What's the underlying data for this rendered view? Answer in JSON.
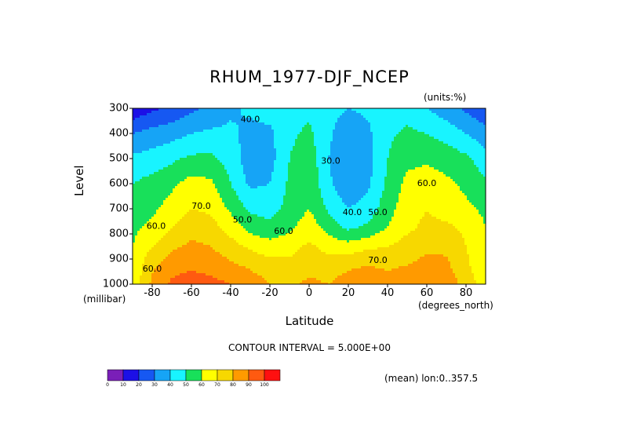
{
  "chart_data": {
    "type": "heatmap",
    "title": "RHUM_1977-DJF_NCEP",
    "units": "(units:%)",
    "ylabel": "Level",
    "yunits": "(millibar)",
    "xlabel": "Latitude",
    "xunits": "(degrees_north)",
    "contour_interval": "CONTOUR INTERVAL = 5.000E+00",
    "mean_note": "(mean) lon:0..357.5",
    "xlim": [
      -90,
      90
    ],
    "ylim": [
      1000,
      300
    ],
    "xticks": [
      -80,
      -60,
      -40,
      -20,
      0,
      20,
      40,
      60,
      80
    ],
    "xtick_labels": [
      "-80",
      "-60",
      "-40",
      "-20",
      "0",
      "20",
      "40",
      "60",
      "80"
    ],
    "yticks": [
      300,
      400,
      500,
      600,
      700,
      800,
      900,
      1000
    ],
    "ytick_labels": [
      "300",
      "400",
      "500",
      "600",
      "700",
      "800",
      "900",
      "1000"
    ],
    "latitude": [
      -90,
      -80,
      -70,
      -60,
      -50,
      -40,
      -30,
      -20,
      -10,
      0,
      10,
      20,
      30,
      40,
      50,
      60,
      70,
      80,
      90
    ],
    "level": [
      1000,
      925,
      850,
      775,
      700,
      600,
      500,
      400,
      300
    ],
    "values": [
      [
        63,
        82,
        92,
        95,
        93,
        90,
        86,
        80,
        78,
        82,
        80,
        85,
        88,
        85,
        88,
        90,
        88,
        75,
        65
      ],
      [
        62,
        78,
        86,
        88,
        86,
        82,
        78,
        74,
        73,
        77,
        75,
        78,
        80,
        78,
        80,
        83,
        82,
        72,
        63
      ],
      [
        60,
        70,
        78,
        82,
        80,
        74,
        68,
        64,
        66,
        72,
        66,
        64,
        68,
        70,
        74,
        78,
        78,
        70,
        62
      ],
      [
        58,
        62,
        70,
        76,
        74,
        66,
        56,
        53,
        58,
        66,
        56,
        48,
        52,
        60,
        68,
        72,
        72,
        68,
        60
      ],
      [
        56,
        58,
        64,
        70,
        68,
        58,
        48,
        46,
        53,
        60,
        48,
        40,
        44,
        56,
        66,
        70,
        66,
        62,
        58
      ],
      [
        50,
        54,
        58,
        64,
        62,
        50,
        38,
        40,
        52,
        58,
        42,
        32,
        38,
        52,
        63,
        66,
        62,
        58,
        52
      ],
      [
        42,
        44,
        48,
        52,
        52,
        46,
        34,
        36,
        50,
        56,
        40,
        30,
        36,
        50,
        57,
        58,
        56,
        52,
        44
      ],
      [
        30,
        34,
        36,
        40,
        42,
        42,
        37,
        38,
        48,
        52,
        42,
        32,
        38,
        48,
        52,
        50,
        46,
        40,
        34
      ],
      [
        12,
        18,
        22,
        28,
        32,
        38,
        42,
        44,
        46,
        48,
        44,
        40,
        42,
        44,
        46,
        40,
        34,
        28,
        22
      ]
    ],
    "contour_labels": [
      {
        "text": "40.0",
        "lat": -30,
        "lev": 355
      },
      {
        "text": "30.0",
        "lat": 11,
        "lev": 520
      },
      {
        "text": "40.0",
        "lat": 22,
        "lev": 725
      },
      {
        "text": "50.0",
        "lat": 35,
        "lev": 725
      },
      {
        "text": "50.0",
        "lat": -34,
        "lev": 755
      },
      {
        "text": "60.0",
        "lat": -13,
        "lev": 800
      },
      {
        "text": "70.0",
        "lat": -55,
        "lev": 700
      },
      {
        "text": "60.0",
        "lat": -78,
        "lev": 780
      },
      {
        "text": "70.0",
        "lat": 35,
        "lev": 915
      },
      {
        "text": "60.0",
        "lat": 60,
        "lev": 610
      },
      {
        "text": "60.0",
        "lat": -80,
        "lev": 950
      }
    ],
    "colorbar": {
      "levels": [
        "0",
        "10",
        "20",
        "30",
        "40",
        "50",
        "60",
        "70",
        "80",
        "90",
        "100"
      ],
      "colors": [
        "#7a1fb8",
        "#1c10e6",
        "#1658f2",
        "#16a4f6",
        "#18f4ff",
        "#18e05a",
        "#ffff00",
        "#f7d800",
        "#ff9a00",
        "#ff5a10",
        "#ff1010"
      ]
    },
    "grid": false
  }
}
